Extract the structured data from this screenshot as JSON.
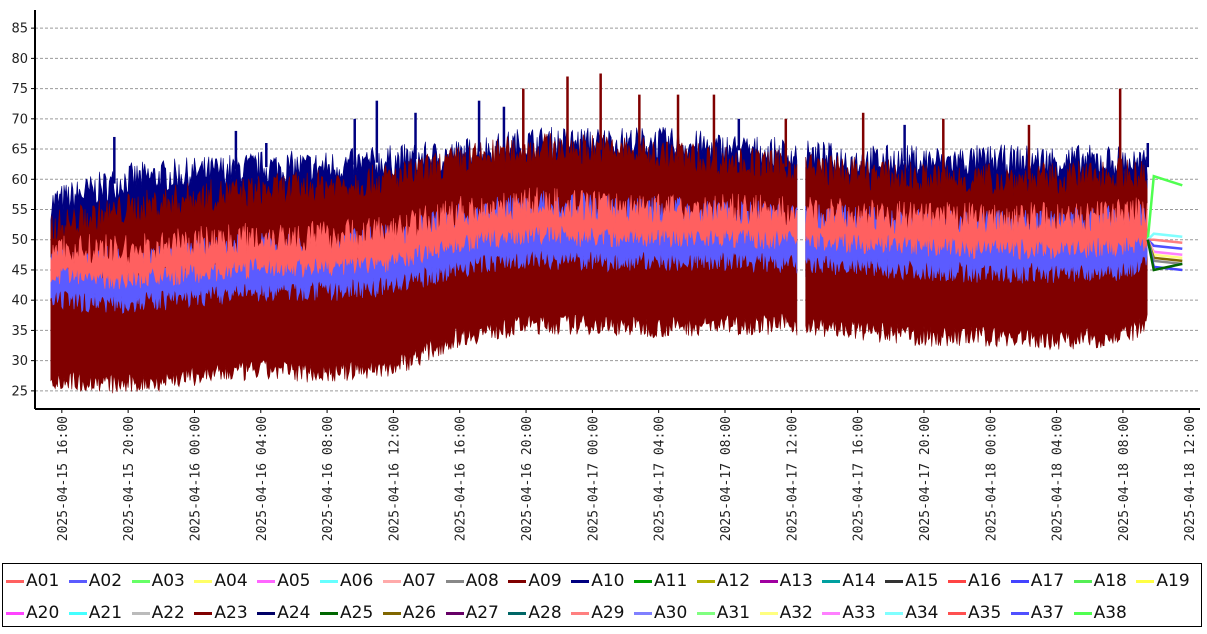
{
  "chart_data": {
    "type": "line",
    "title": "",
    "xlabel": "",
    "ylabel": "",
    "ylim": [
      22,
      88
    ],
    "y_ticks": [
      25,
      30,
      35,
      40,
      45,
      50,
      55,
      60,
      65,
      70,
      75,
      80,
      85
    ],
    "x_ticks": [
      "2025-04-15 16:00",
      "2025-04-15 20:00",
      "2025-04-16 00:00",
      "2025-04-16 04:00",
      "2025-04-16 08:00",
      "2025-04-16 12:00",
      "2025-04-16 16:00",
      "2025-04-16 20:00",
      "2025-04-17 00:00",
      "2025-04-17 04:00",
      "2025-04-17 08:00",
      "2025-04-17 12:00",
      "2025-04-17 16:00",
      "2025-04-17 20:00",
      "2025-04-18 00:00",
      "2025-04-18 04:00",
      "2025-04-18 08:00",
      "2025-04-18 12:00"
    ],
    "x_range": [
      "2025-04-15 15:10",
      "2025-04-18 12:10"
    ],
    "grid": "horizontal-dashed",
    "legend_position": "bottom",
    "series": [
      {
        "name": "A01",
        "color": "#ff6060"
      },
      {
        "name": "A02",
        "color": "#5b5bff"
      },
      {
        "name": "A03",
        "color": "#66ff66"
      },
      {
        "name": "A04",
        "color": "#ffff66"
      },
      {
        "name": "A05",
        "color": "#ff66ff"
      },
      {
        "name": "A06",
        "color": "#66ffff"
      },
      {
        "name": "A07",
        "color": "#ffaaaa"
      },
      {
        "name": "A08",
        "color": "#888888"
      },
      {
        "name": "A09",
        "color": "#800000"
      },
      {
        "name": "A10",
        "color": "#000080"
      },
      {
        "name": "A11",
        "color": "#00a000"
      },
      {
        "name": "A12",
        "color": "#b0b000"
      },
      {
        "name": "A13",
        "color": "#a000a0"
      },
      {
        "name": "A14",
        "color": "#00a0a0"
      },
      {
        "name": "A15",
        "color": "#333333"
      },
      {
        "name": "A16",
        "color": "#ff4444"
      },
      {
        "name": "A17",
        "color": "#4444ff"
      },
      {
        "name": "A18",
        "color": "#55ee55"
      },
      {
        "name": "A19",
        "color": "#ffff44"
      },
      {
        "name": "A20",
        "color": "#ff44ff"
      },
      {
        "name": "A21",
        "color": "#44ffff"
      },
      {
        "name": "A22",
        "color": "#bbbbbb"
      },
      {
        "name": "A23",
        "color": "#800000"
      },
      {
        "name": "A24",
        "color": "#000066"
      },
      {
        "name": "A25",
        "color": "#006600"
      },
      {
        "name": "A26",
        "color": "#806600"
      },
      {
        "name": "A27",
        "color": "#660066"
      },
      {
        "name": "A28",
        "color": "#006666"
      },
      {
        "name": "A29",
        "color": "#ff8080"
      },
      {
        "name": "A30",
        "color": "#8080ff"
      },
      {
        "name": "A31",
        "color": "#80ff80"
      },
      {
        "name": "A32",
        "color": "#ffff80"
      },
      {
        "name": "A33",
        "color": "#ff80ff"
      },
      {
        "name": "A34",
        "color": "#80ffff"
      },
      {
        "name": "A35",
        "color": "#ff5050"
      },
      {
        "name": "A37",
        "color": "#5050ff"
      },
      {
        "name": "A38",
        "color": "#50ff50"
      }
    ],
    "bands": [
      {
        "name": "A10",
        "color": "#000080",
        "profile": [
          {
            "t": "2025-04-15 15:20",
            "low": 39.0,
            "high": 56
          },
          {
            "t": "2025-04-15 20:00",
            "low": 38.5,
            "high": 60
          },
          {
            "t": "2025-04-16 00:00",
            "low": 39.5,
            "high": 61
          },
          {
            "t": "2025-04-16 04:00",
            "low": 40.5,
            "high": 62
          },
          {
            "t": "2025-04-16 08:00",
            "low": 40.5,
            "high": 62
          },
          {
            "t": "2025-04-16 12:00",
            "low": 41.5,
            "high": 63
          },
          {
            "t": "2025-04-16 16:00",
            "low": 44.5,
            "high": 64
          },
          {
            "t": "2025-04-16 20:00",
            "low": 46.0,
            "high": 66
          },
          {
            "t": "2025-04-17 00:00",
            "low": 45.5,
            "high": 66
          },
          {
            "t": "2025-04-17 04:00",
            "low": 45.5,
            "high": 66
          },
          {
            "t": "2025-04-17 08:00",
            "low": 45.5,
            "high": 65
          },
          {
            "t": "2025-04-17 12:00",
            "low": 45.0,
            "high": 64
          },
          {
            "t": "2025-04-17 16:00",
            "low": 44.5,
            "high": 63
          },
          {
            "t": "2025-04-17 20:00",
            "low": 44.0,
            "high": 63
          },
          {
            "t": "2025-04-18 00:00",
            "low": 43.5,
            "high": 63
          },
          {
            "t": "2025-04-18 04:00",
            "low": 43.5,
            "high": 63
          },
          {
            "t": "2025-04-18 08:00",
            "low": 44.0,
            "high": 63
          },
          {
            "t": "2025-04-18 09:30",
            "low": 45.0,
            "high": 62
          }
        ]
      },
      {
        "name": "A09",
        "color": "#800000",
        "profile": [
          {
            "t": "2025-04-15 15:20",
            "low": 27.0,
            "high": 52
          },
          {
            "t": "2025-04-15 20:00",
            "low": 26.0,
            "high": 55
          },
          {
            "t": "2025-04-16 00:00",
            "low": 27.5,
            "high": 57
          },
          {
            "t": "2025-04-16 04:00",
            "low": 28.5,
            "high": 58
          },
          {
            "t": "2025-04-16 08:00",
            "low": 28.0,
            "high": 59
          },
          {
            "t": "2025-04-16 12:00",
            "low": 29.0,
            "high": 60
          },
          {
            "t": "2025-04-16 16:00",
            "low": 34.0,
            "high": 63
          },
          {
            "t": "2025-04-16 20:00",
            "low": 36.0,
            "high": 65
          },
          {
            "t": "2025-04-17 00:00",
            "low": 36.0,
            "high": 65
          },
          {
            "t": "2025-04-17 04:00",
            "low": 35.5,
            "high": 64
          },
          {
            "t": "2025-04-17 08:00",
            "low": 36.0,
            "high": 63
          },
          {
            "t": "2025-04-17 12:00",
            "low": 36.0,
            "high": 62
          },
          {
            "t": "2025-04-17 16:00",
            "low": 35.0,
            "high": 61
          },
          {
            "t": "2025-04-17 20:00",
            "low": 34.0,
            "high": 60
          },
          {
            "t": "2025-04-18 00:00",
            "low": 34.0,
            "high": 60
          },
          {
            "t": "2025-04-18 04:00",
            "low": 33.5,
            "high": 60
          },
          {
            "t": "2025-04-18 08:00",
            "low": 34.0,
            "high": 61
          },
          {
            "t": "2025-04-18 09:30",
            "low": 36.0,
            "high": 60
          }
        ]
      },
      {
        "name": "A02",
        "color": "#5b5bff",
        "profile": [
          {
            "t": "2025-04-15 15:20",
            "low": 40.0,
            "high": 46.5
          },
          {
            "t": "2025-04-15 20:00",
            "low": 39.5,
            "high": 46.0
          },
          {
            "t": "2025-04-16 00:00",
            "low": 40.5,
            "high": 47.5
          },
          {
            "t": "2025-04-16 04:00",
            "low": 41.5,
            "high": 48.5
          },
          {
            "t": "2025-04-16 08:00",
            "low": 41.5,
            "high": 48.5
          },
          {
            "t": "2025-04-16 12:00",
            "low": 42.5,
            "high": 50.0
          },
          {
            "t": "2025-04-16 16:00",
            "low": 45.5,
            "high": 53.5
          },
          {
            "t": "2025-04-16 20:00",
            "low": 47.0,
            "high": 55.5
          },
          {
            "t": "2025-04-17 00:00",
            "low": 46.5,
            "high": 55.0
          },
          {
            "t": "2025-04-17 04:00",
            "low": 46.5,
            "high": 54.5
          },
          {
            "t": "2025-04-17 08:00",
            "low": 46.5,
            "high": 54.0
          },
          {
            "t": "2025-04-17 12:00",
            "low": 46.0,
            "high": 53.5
          },
          {
            "t": "2025-04-17 16:00",
            "low": 45.5,
            "high": 53.0
          },
          {
            "t": "2025-04-17 20:00",
            "low": 45.0,
            "high": 52.5
          },
          {
            "t": "2025-04-18 00:00",
            "low": 44.5,
            "high": 52.5
          },
          {
            "t": "2025-04-18 04:00",
            "low": 44.5,
            "high": 52.5
          },
          {
            "t": "2025-04-18 08:00",
            "low": 45.0,
            "high": 53.0
          },
          {
            "t": "2025-04-18 09:30",
            "low": 46.0,
            "high": 53.5
          }
        ]
      },
      {
        "name": "A01",
        "color": "#ff6060",
        "profile": [
          {
            "t": "2025-04-15 15:20",
            "low": 44.0,
            "high": 48.5
          },
          {
            "t": "2025-04-15 20:00",
            "low": 43.5,
            "high": 48.0
          },
          {
            "t": "2025-04-16 00:00",
            "low": 44.5,
            "high": 49.5
          },
          {
            "t": "2025-04-16 04:00",
            "low": 45.5,
            "high": 50.5
          },
          {
            "t": "2025-04-16 08:00",
            "low": 45.5,
            "high": 50.5
          },
          {
            "t": "2025-04-16 12:00",
            "low": 46.5,
            "high": 51.5
          },
          {
            "t": "2025-04-16 16:00",
            "low": 49.5,
            "high": 54.5
          },
          {
            "t": "2025-04-16 20:00",
            "low": 51.0,
            "high": 56.0
          },
          {
            "t": "2025-04-17 00:00",
            "low": 50.5,
            "high": 55.5
          },
          {
            "t": "2025-04-17 04:00",
            "low": 50.5,
            "high": 55.0
          },
          {
            "t": "2025-04-17 08:00",
            "low": 50.5,
            "high": 55.0
          },
          {
            "t": "2025-04-17 12:00",
            "low": 50.0,
            "high": 54.5
          },
          {
            "t": "2025-04-17 16:00",
            "low": 49.5,
            "high": 54.0
          },
          {
            "t": "2025-04-17 20:00",
            "low": 49.0,
            "high": 53.5
          },
          {
            "t": "2025-04-18 00:00",
            "low": 48.5,
            "high": 53.5
          },
          {
            "t": "2025-04-18 04:00",
            "low": 48.5,
            "high": 53.5
          },
          {
            "t": "2025-04-18 08:00",
            "low": 49.0,
            "high": 54.0
          },
          {
            "t": "2025-04-18 09:30",
            "low": 50.0,
            "high": 54.5
          }
        ]
      }
    ],
    "spikes": [
      {
        "name": "A10",
        "color": "#000080",
        "points": [
          [
            "2025-04-15 19:10",
            67
          ],
          [
            "2025-04-16 02:30",
            68
          ],
          [
            "2025-04-16 04:20",
            66
          ],
          [
            "2025-04-16 09:40",
            70
          ],
          [
            "2025-04-16 11:00",
            73
          ],
          [
            "2025-04-16 13:20",
            71
          ],
          [
            "2025-04-16 17:10",
            73
          ],
          [
            "2025-04-16 18:40",
            72
          ],
          [
            "2025-04-17 08:50",
            70
          ],
          [
            "2025-04-17 18:50",
            69
          ],
          [
            "2025-04-18 09:30",
            66
          ]
        ]
      },
      {
        "name": "A09",
        "color": "#800000",
        "points": [
          [
            "2025-04-16 19:50",
            75
          ],
          [
            "2025-04-16 22:30",
            77
          ],
          [
            "2025-04-17 00:30",
            77.5
          ],
          [
            "2025-04-17 02:50",
            74
          ],
          [
            "2025-04-17 05:10",
            74
          ],
          [
            "2025-04-17 07:20",
            74
          ],
          [
            "2025-04-17 11:40",
            70
          ],
          [
            "2025-04-17 16:20",
            71
          ],
          [
            "2025-04-17 21:10",
            70
          ],
          [
            "2025-04-18 02:20",
            69
          ],
          [
            "2025-04-18 07:50",
            75
          ]
        ]
      }
    ],
    "tail": [
      {
        "name": "A38",
        "color": "#50ff50",
        "start": 60.5,
        "end": 59.0
      },
      {
        "name": "A34",
        "color": "#80ffff",
        "start": 51.0,
        "end": 50.5
      },
      {
        "name": "A29",
        "color": "#ff8080",
        "start": 50.0,
        "end": 49.5
      },
      {
        "name": "A37",
        "color": "#5050ff",
        "start": 49.0,
        "end": 48.5
      },
      {
        "name": "A33",
        "color": "#ff80ff",
        "start": 48.0,
        "end": 47.5
      },
      {
        "name": "A32",
        "color": "#ffff80",
        "start": 47.5,
        "end": 47.0
      },
      {
        "name": "A26",
        "color": "#806600",
        "start": 47.0,
        "end": 46.5
      },
      {
        "name": "A08",
        "color": "#888888",
        "start": 46.5,
        "end": 46.0
      },
      {
        "name": "A17",
        "color": "#4444ff",
        "start": 45.5,
        "end": 45.0
      },
      {
        "name": "A25",
        "color": "#006600",
        "start": 45.0,
        "end": 46.0
      }
    ],
    "tail_range": [
      "2025-04-18 09:30",
      "2025-04-18 11:35"
    ],
    "gap": [
      "2025-04-17 12:20",
      "2025-04-17 12:50"
    ]
  }
}
